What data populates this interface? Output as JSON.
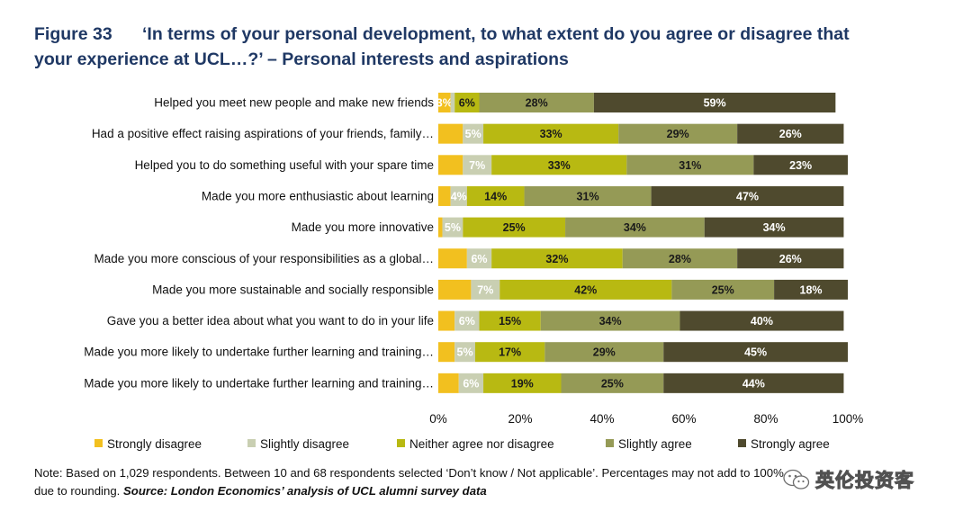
{
  "figure": {
    "number": "Figure 33",
    "title_line1": "‘In terms of your personal development, to what extent do you agree or disagree that",
    "title_line2": "your experience at UCL…?’ – Personal interests and aspirations"
  },
  "note": {
    "line1": "Note: Based on 1,029 respondents. Between 10 and 68 respondents selected ‘Don’t know / Not applicable’. Percentages may not add to 100%",
    "line2_prefix": "due to rounding. ",
    "source": "Source: London Economics’ analysis of UCL alumni survey data"
  },
  "watermark": {
    "text": "英伦投资客",
    "icon": "wechat-icon"
  },
  "chart_data": {
    "type": "bar",
    "orientation": "horizontal",
    "stacked": true,
    "categories": [
      "Helped you meet new people and make new friends",
      "Had a positive effect raising aspirations of your friends, family…",
      "Helped you to do something useful with your spare time",
      "Made you more enthusiastic about learning",
      "Made you more innovative",
      "Made you more conscious of your responsibilities as a global…",
      "Made you more sustainable and socially responsible",
      "Gave you a better idea about what you want to do in your life",
      "Made you more likely to undertake further learning and training…",
      "Made you more likely to undertake further learning and training…"
    ],
    "series": [
      {
        "name": "Strongly disagree",
        "color": "#f2c01f",
        "label_color": "#ffffff",
        "values": [
          3,
          6,
          6,
          3,
          1,
          7,
          8,
          4,
          4,
          5
        ],
        "labels": [
          "3%",
          "",
          "",
          "",
          "",
          "",
          "",
          "",
          "",
          ""
        ]
      },
      {
        "name": "Slightly disagree",
        "color": "#c9cfb2",
        "label_color": "#ffffff",
        "values": [
          1,
          5,
          7,
          4,
          5,
          6,
          7,
          6,
          5,
          6
        ],
        "labels": [
          "",
          "5%",
          "7%",
          "4%",
          "5%",
          "6%",
          "7%",
          "6%",
          "5%",
          "6%"
        ]
      },
      {
        "name": "Neither agree nor disagree",
        "color": "#b8b912",
        "label_color": "#1a1a1a",
        "values": [
          6,
          33,
          33,
          14,
          25,
          32,
          42,
          15,
          17,
          19
        ],
        "labels": [
          "6%",
          "33%",
          "33%",
          "14%",
          "25%",
          "32%",
          "42%",
          "15%",
          "17%",
          "19%"
        ]
      },
      {
        "name": "Slightly agree",
        "color": "#959a56",
        "label_color": "#1a1a1a",
        "values": [
          28,
          29,
          31,
          31,
          34,
          28,
          25,
          34,
          29,
          25
        ],
        "labels": [
          "28%",
          "29%",
          "31%",
          "31%",
          "34%",
          "28%",
          "25%",
          "34%",
          "29%",
          "25%"
        ]
      },
      {
        "name": "Strongly agree",
        "color": "#4f4a2e",
        "label_color": "#ffffff",
        "values": [
          59,
          26,
          23,
          47,
          34,
          26,
          18,
          40,
          45,
          44
        ],
        "labels": [
          "59%",
          "26%",
          "23%",
          "47%",
          "34%",
          "26%",
          "18%",
          "40%",
          "45%",
          "44%"
        ]
      }
    ],
    "xlim": [
      0,
      100
    ],
    "xticks": [
      "0%",
      "20%",
      "40%",
      "60%",
      "80%",
      "100%"
    ],
    "grid": false,
    "legend_position": "bottom"
  }
}
